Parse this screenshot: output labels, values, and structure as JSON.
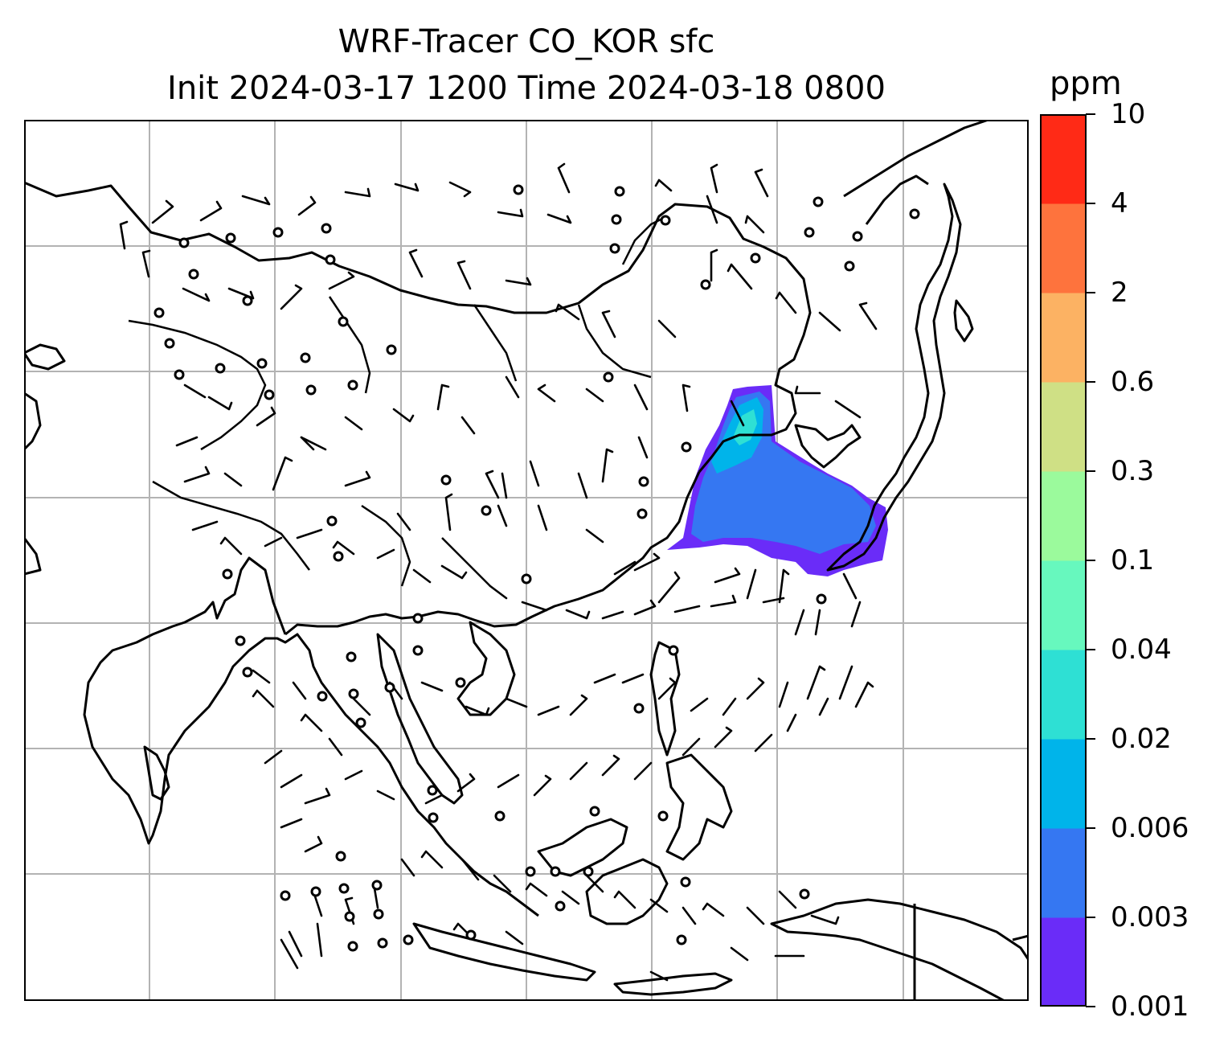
{
  "title_line1": "WRF-Tracer CO_KOR sfc",
  "title_line2": "Init 2024-03-17 1200 Time 2024-03-18 0800",
  "colorbar": {
    "units": "ppm",
    "levels": [
      "0.001",
      "0.003",
      "0.006",
      "0.02",
      "0.04",
      "0.1",
      "0.3",
      "0.6",
      "2",
      "4",
      "10"
    ],
    "colors": [
      "#6a2cf8",
      "#3577f2",
      "#00b4ea",
      "#2ee0d4",
      "#67f8be",
      "#9bfa9c",
      "#cfe085",
      "#fcb263",
      "#fe733d",
      "#ff2a16"
    ]
  },
  "map": {
    "projection": "Lambert conformal",
    "gridlines": "on",
    "wind_barbs": "surface wind barbs, calm circles",
    "plume_region": "Korea / Yellow Sea / East China Sea",
    "plume_colors_present": [
      "#6a2cf8",
      "#3577f2",
      "#00b4ea",
      "#2ee0d4"
    ]
  }
}
